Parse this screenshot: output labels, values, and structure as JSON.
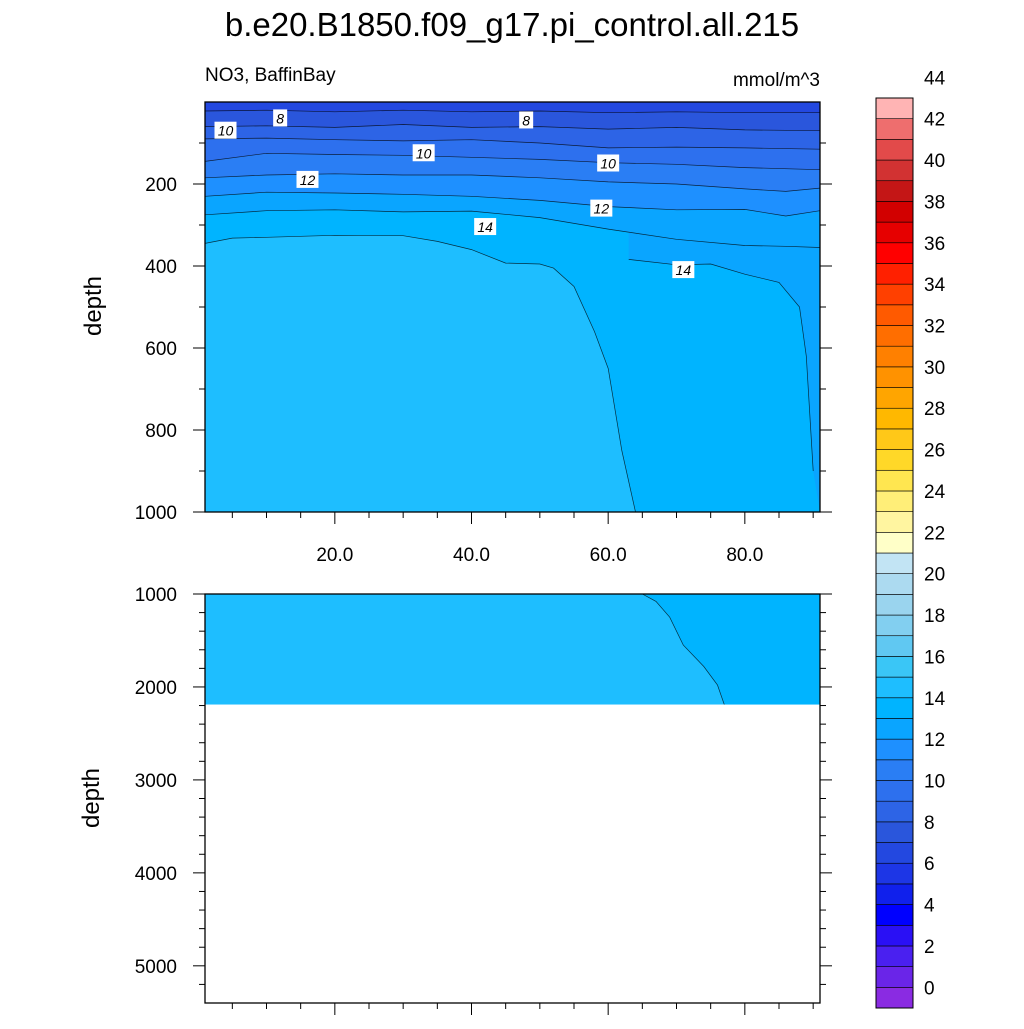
{
  "title": "b.e20.B1850.f09_g17.pi_control.all.215",
  "subtitle_left": "NO3, BaffinBay",
  "subtitle_right": "mmol/m^3",
  "chart_data": [
    {
      "type": "contour",
      "panel": "upper",
      "ylabel": "depth",
      "xlabel": "",
      "xlim": [
        1,
        91
      ],
      "ylim": [
        1000,
        0
      ],
      "y_reversed": true,
      "x_ticks": [
        20,
        40,
        60,
        80
      ],
      "x_tick_labels": [
        "20.0",
        "40.0",
        "60.0",
        "80.0"
      ],
      "y_ticks": [
        200,
        400,
        600,
        800,
        1000
      ],
      "y_tick_labels": [
        "200",
        "400",
        "600",
        "800",
        "1000"
      ],
      "contour_labels": [
        {
          "text": "8",
          "x": 12,
          "y": 40
        },
        {
          "text": "8",
          "x": 48,
          "y": 45
        },
        {
          "text": "10",
          "x": 4,
          "y": 70
        },
        {
          "text": "10",
          "x": 33,
          "y": 125
        },
        {
          "text": "10",
          "x": 60,
          "y": 150
        },
        {
          "text": "12",
          "x": 16,
          "y": 190
        },
        {
          "text": "12",
          "x": 59,
          "y": 260
        },
        {
          "text": "14",
          "x": 42,
          "y": 305
        },
        {
          "text": "14",
          "x": 71,
          "y": 410
        }
      ],
      "contours": [
        {
          "level": 14,
          "points": [
            [
              1,
              345
            ],
            [
              5,
              332
            ],
            [
              10,
              330
            ],
            [
              20,
              325
            ],
            [
              30,
              326
            ],
            [
              35,
              340
            ],
            [
              40,
              360
            ],
            [
              45,
              393
            ],
            [
              50,
              395
            ],
            [
              52,
              405
            ],
            [
              55,
              450
            ],
            [
              58,
              560
            ],
            [
              60,
              650
            ],
            [
              62,
              850
            ],
            [
              64,
              1000
            ]
          ]
        },
        {
          "level": 14,
          "points": [
            [
              63,
              384
            ],
            [
              70,
              397
            ],
            [
              75,
              395
            ],
            [
              80,
              420
            ],
            [
              85,
              440
            ],
            [
              88,
              500
            ],
            [
              89,
              620
            ],
            [
              90,
              900
            ]
          ]
        },
        {
          "level": 13,
          "points": [
            [
              1,
              275
            ],
            [
              10,
              265
            ],
            [
              20,
              263
            ],
            [
              30,
              268
            ],
            [
              40,
              266
            ],
            [
              50,
              282
            ],
            [
              60,
              310
            ],
            [
              70,
              335
            ],
            [
              80,
              350
            ],
            [
              86,
              352
            ],
            [
              91,
              355
            ]
          ]
        },
        {
          "level": 12,
          "points": [
            [
              1,
              230
            ],
            [
              10,
              220
            ],
            [
              20,
              222
            ],
            [
              30,
              225
            ],
            [
              40,
              230
            ],
            [
              50,
              240
            ],
            [
              60,
              255
            ],
            [
              70,
              263
            ],
            [
              80,
              262
            ],
            [
              86,
              278
            ],
            [
              91,
              265
            ]
          ]
        },
        {
          "level": 11,
          "points": [
            [
              1,
              185
            ],
            [
              10,
              178
            ],
            [
              20,
              175
            ],
            [
              30,
              178
            ],
            [
              40,
              178
            ],
            [
              50,
              185
            ],
            [
              60,
              195
            ],
            [
              70,
              200
            ],
            [
              80,
              212
            ],
            [
              86,
              218
            ],
            [
              91,
              210
            ]
          ]
        },
        {
          "level": 10,
          "points": [
            [
              1,
              145
            ],
            [
              10,
              125
            ],
            [
              20,
              128
            ],
            [
              30,
              130
            ],
            [
              40,
              135
            ],
            [
              50,
              140
            ],
            [
              60,
              148
            ],
            [
              70,
              152
            ],
            [
              80,
              160
            ],
            [
              91,
              165
            ]
          ]
        },
        {
          "level": 9,
          "points": [
            [
              1,
              90
            ],
            [
              10,
              88
            ],
            [
              20,
              92
            ],
            [
              30,
              95
            ],
            [
              40,
              92
            ],
            [
              50,
              100
            ],
            [
              60,
              112
            ],
            [
              70,
              110
            ],
            [
              80,
              112
            ],
            [
              91,
              115
            ]
          ]
        },
        {
          "level": 8,
          "points": [
            [
              1,
              60
            ],
            [
              10,
              58
            ],
            [
              20,
              62
            ],
            [
              30,
              55
            ],
            [
              40,
              62
            ],
            [
              50,
              60
            ],
            [
              60,
              66
            ],
            [
              70,
              62
            ],
            [
              80,
              68
            ],
            [
              91,
              70
            ]
          ]
        },
        {
          "level": 7,
          "points": [
            [
              1,
              22
            ],
            [
              10,
              20
            ],
            [
              20,
              24
            ],
            [
              30,
              20
            ],
            [
              40,
              24
            ],
            [
              50,
              22
            ],
            [
              60,
              26
            ],
            [
              70,
              24
            ],
            [
              80,
              26
            ],
            [
              91,
              26
            ]
          ]
        }
      ]
    },
    {
      "type": "contour",
      "panel": "lower",
      "ylabel": "depth",
      "xlim": [
        1,
        91
      ],
      "ylim": [
        5400,
        1000
      ],
      "y_reversed": true,
      "y_ticks": [
        1000,
        2000,
        3000,
        4000,
        5000
      ],
      "y_tick_labels": [
        "1000",
        "2000",
        "3000",
        "4000",
        "5000"
      ],
      "data_bottom": 2190,
      "contours": [
        {
          "level": 14,
          "points": [
            [
              65,
              1000
            ],
            [
              67,
              1080
            ],
            [
              69,
              1250
            ],
            [
              71,
              1550
            ],
            [
              74,
              1780
            ],
            [
              76,
              1980
            ],
            [
              77,
              2190
            ]
          ]
        }
      ]
    }
  ],
  "colorbar": {
    "labels": [
      "0",
      "2",
      "4",
      "6",
      "8",
      "10",
      "12",
      "14",
      "16",
      "18",
      "20",
      "22",
      "24",
      "26",
      "28",
      "30",
      "32",
      "34",
      "36",
      "38",
      "40",
      "42",
      "44"
    ],
    "colors": [
      "#8a2be2",
      "#6a25e8",
      "#4a20f0",
      "#2a10f5",
      "#0000ff",
      "#1020ec",
      "#1d36e6",
      "#2348e0",
      "#2a56dc",
      "#2d64e6",
      "#2d70ee",
      "#2a7ef4",
      "#1e90ff",
      "#0aa5ff",
      "#00b4ff",
      "#1ebeff",
      "#3ac6f6",
      "#60c8f2",
      "#82cff0",
      "#9ad4ee",
      "#acdaf0",
      "#c2e4f4",
      "#ffffc8",
      "#fff5a0",
      "#ffee78",
      "#ffe650",
      "#ffd828",
      "#ffc818",
      "#ffb800",
      "#ffa500",
      "#ff9200",
      "#ff8000",
      "#ff6e00",
      "#ff5a00",
      "#ff4000",
      "#ff2000",
      "#ff0000",
      "#e60000",
      "#d20000",
      "#c41616",
      "#d23232",
      "#e24a4a",
      "#ee6e6e",
      "#ffb4b4"
    ]
  }
}
